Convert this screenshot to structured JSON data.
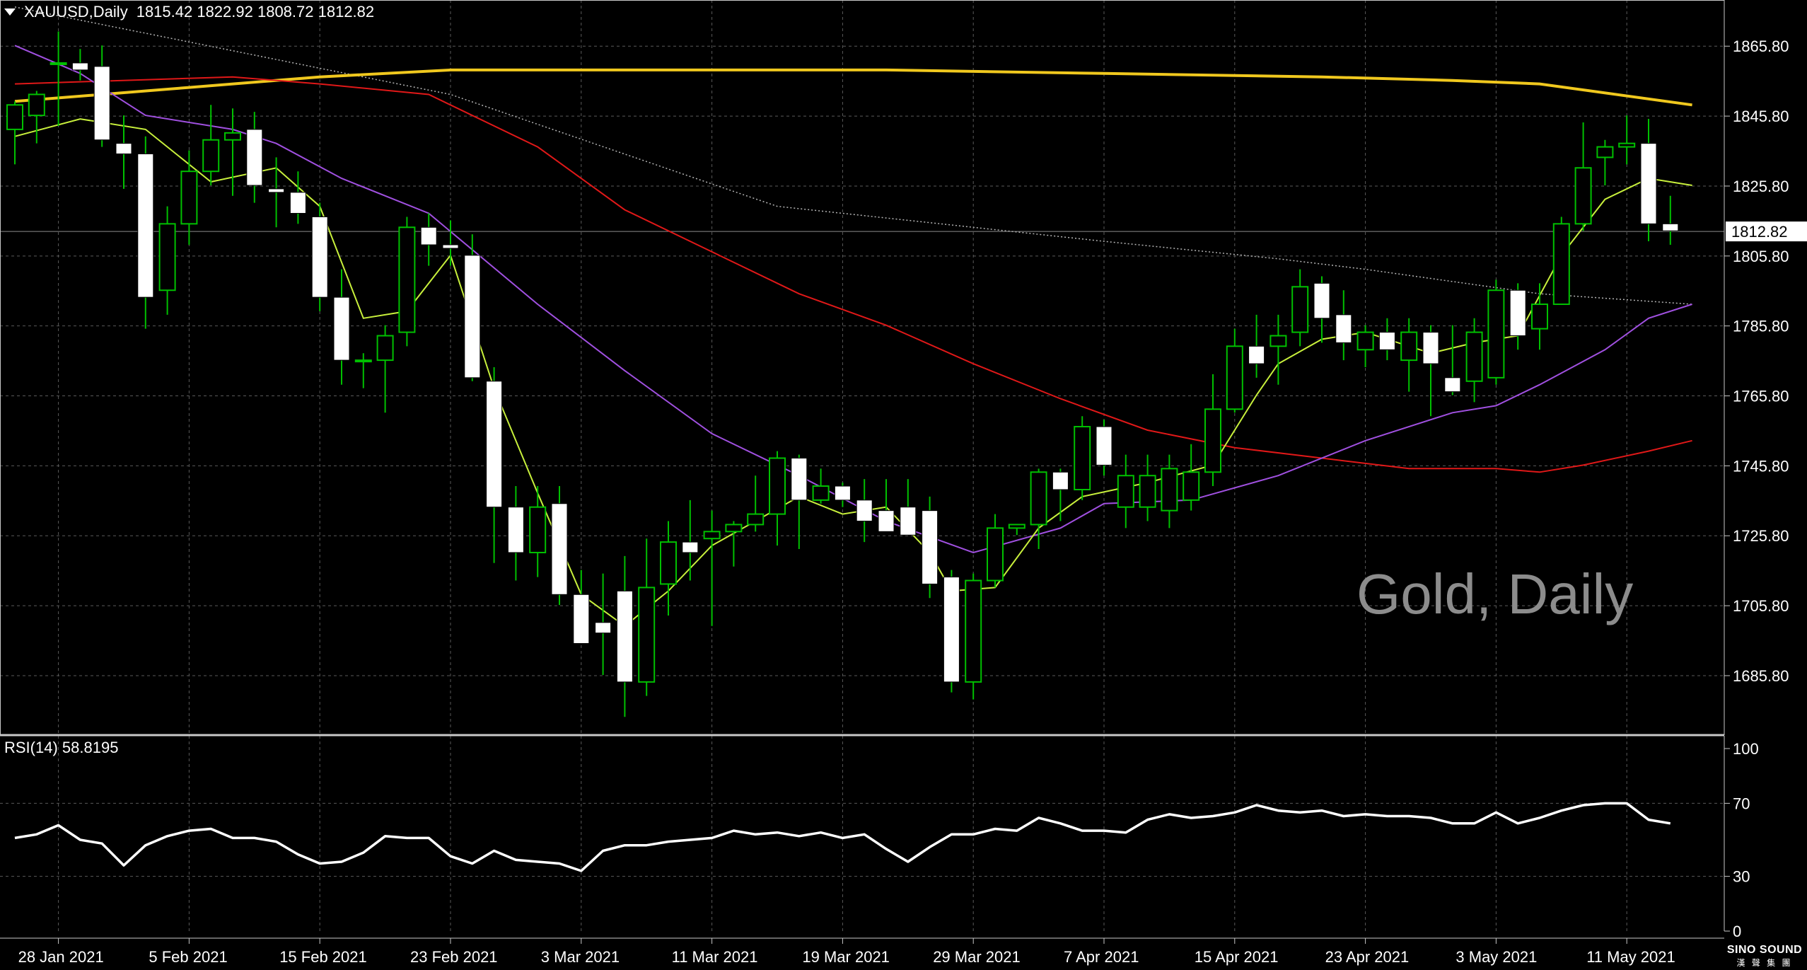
{
  "header": {
    "symbol": "XAUUSD,Daily",
    "ohlc": "1815.42 1822.92 1808.72 1812.82"
  },
  "rsi_header": "RSI(14) 58.8195",
  "watermark": "Gold, Daily",
  "logo": {
    "line1": "SINO SOUND",
    "line2": "漢 聲 集 團"
  },
  "colors": {
    "background": "#000000",
    "grid": "#5a5a5a",
    "bull_candle": "#000000",
    "bear_candle": "#ffffff",
    "wick": "#00c000",
    "ma_fast": "#c8f03c",
    "ma_mid": "#a050e0",
    "ma_slow": "#e01818",
    "ma_long": "#f0c81e",
    "ma_dotted": "#b4b4b4",
    "rsi_line": "#ffffff",
    "price_tag_bg": "#ffffff",
    "price_tag_text": "#000000"
  },
  "chart_data": [
    {
      "type": "candlestick",
      "ylim": [
        1669,
        1879
      ],
      "yticks": [
        1865.8,
        1845.8,
        1825.8,
        1805.8,
        1785.8,
        1765.8,
        1745.8,
        1725.8,
        1705.8,
        1685.8
      ],
      "last_price": 1812.82,
      "last_price_label": "1812.82",
      "xticks": [
        {
          "i": 2,
          "label": "28 Jan 2021"
        },
        {
          "i": 8,
          "label": "5 Feb 2021"
        },
        {
          "i": 14,
          "label": "15 Feb 2021"
        },
        {
          "i": 20,
          "label": "23 Feb 2021"
        },
        {
          "i": 26,
          "label": "3 Mar 2021"
        },
        {
          "i": 32,
          "label": "11 Mar 2021"
        },
        {
          "i": 38,
          "label": "19 Mar 2021"
        },
        {
          "i": 44,
          "label": "29 Mar 2021"
        },
        {
          "i": 50,
          "label": "7 Apr 2021"
        },
        {
          "i": 56,
          "label": "15 Apr 2021"
        },
        {
          "i": 62,
          "label": "23 Apr 2021"
        },
        {
          "i": 68,
          "label": "3 May 2021"
        },
        {
          "i": 74,
          "label": "11 May 2021"
        }
      ],
      "candles": [
        [
          1842,
          1850,
          1832,
          1849
        ],
        [
          1846,
          1853,
          1838,
          1852
        ],
        [
          1861,
          1870,
          1843,
          1861
        ],
        [
          1861,
          1865,
          1856,
          1859
        ],
        [
          1860,
          1866,
          1837,
          1839
        ],
        [
          1838,
          1846,
          1825,
          1835
        ],
        [
          1835,
          1840,
          1785,
          1794
        ],
        [
          1796,
          1820,
          1789,
          1815
        ],
        [
          1815,
          1836,
          1809,
          1830
        ],
        [
          1830,
          1849,
          1826,
          1839
        ],
        [
          1839,
          1848,
          1823,
          1841
        ],
        [
          1842,
          1847,
          1821,
          1826
        ],
        [
          1825,
          1834,
          1814,
          1824
        ],
        [
          1824,
          1830,
          1815,
          1818
        ],
        [
          1817,
          1821,
          1790,
          1794
        ],
        [
          1794,
          1802,
          1769,
          1776
        ],
        [
          1776,
          1778,
          1768,
          1776
        ],
        [
          1776,
          1786,
          1761,
          1783
        ],
        [
          1784,
          1817,
          1780,
          1814
        ],
        [
          1814,
          1818,
          1803,
          1809
        ],
        [
          1809,
          1816,
          1803,
          1808
        ],
        [
          1806,
          1812,
          1770,
          1771
        ],
        [
          1770,
          1774,
          1718,
          1734
        ],
        [
          1734,
          1740,
          1713,
          1721
        ],
        [
          1721,
          1740,
          1714,
          1734
        ],
        [
          1735,
          1740,
          1706,
          1709
        ],
        [
          1709,
          1716,
          1695,
          1695
        ],
        [
          1701,
          1715,
          1686,
          1698
        ],
        [
          1710,
          1720,
          1674,
          1684
        ],
        [
          1684,
          1725,
          1680,
          1711
        ],
        [
          1712,
          1730,
          1703,
          1724
        ],
        [
          1724,
          1736,
          1713,
          1721
        ],
        [
          1725,
          1733,
          1700,
          1727
        ],
        [
          1727,
          1730,
          1717,
          1729
        ],
        [
          1729,
          1743,
          1727,
          1732
        ],
        [
          1732,
          1750,
          1723,
          1748
        ],
        [
          1748,
          1749,
          1722,
          1736
        ],
        [
          1736,
          1745,
          1735,
          1740
        ],
        [
          1740,
          1741,
          1734,
          1736
        ],
        [
          1736,
          1742,
          1724,
          1730
        ],
        [
          1733,
          1742,
          1727,
          1727
        ],
        [
          1734,
          1742,
          1726,
          1726
        ],
        [
          1733,
          1737,
          1708,
          1712
        ],
        [
          1714,
          1716,
          1681,
          1684
        ],
        [
          1684,
          1715,
          1679,
          1713
        ],
        [
          1713,
          1732,
          1711,
          1728
        ],
        [
          1728,
          1728,
          1726,
          1729
        ],
        [
          1729,
          1745,
          1722,
          1744
        ],
        [
          1744,
          1745,
          1730,
          1739
        ],
        [
          1739,
          1760,
          1736,
          1757
        ],
        [
          1757,
          1759,
          1743,
          1746
        ],
        [
          1734,
          1749,
          1728,
          1743
        ],
        [
          1734,
          1749,
          1730,
          1743
        ],
        [
          1733,
          1749,
          1728,
          1745
        ],
        [
          1736,
          1752,
          1733,
          1744
        ],
        [
          1744,
          1772,
          1740,
          1762
        ],
        [
          1762,
          1785,
          1761,
          1780
        ],
        [
          1780,
          1789,
          1771,
          1775
        ],
        [
          1780,
          1789,
          1769,
          1783
        ],
        [
          1784,
          1802,
          1780,
          1797
        ],
        [
          1798,
          1800,
          1781,
          1788
        ],
        [
          1789,
          1796,
          1776,
          1781
        ],
        [
          1779,
          1786,
          1774,
          1784
        ],
        [
          1784,
          1788,
          1776,
          1779
        ],
        [
          1776,
          1788,
          1767,
          1784
        ],
        [
          1784,
          1786,
          1760,
          1775
        ],
        [
          1771,
          1786,
          1766,
          1767
        ],
        [
          1770,
          1788,
          1764,
          1784
        ],
        [
          1771,
          1799,
          1769,
          1796
        ],
        [
          1796,
          1798,
          1779,
          1783
        ],
        [
          1785,
          1798,
          1779,
          1792
        ],
        [
          1792,
          1817,
          1792,
          1815
        ],
        [
          1815,
          1844,
          1813,
          1831
        ],
        [
          1834,
          1839,
          1826,
          1837
        ],
        [
          1837,
          1846,
          1832,
          1838
        ],
        [
          1838,
          1845,
          1810,
          1815
        ],
        [
          1815,
          1823,
          1809,
          1813
        ]
      ],
      "moving_averages": [
        {
          "key": "ma_dotted",
          "style": "dotted",
          "points": [
            [
              0,
              1877
            ],
            [
              20,
              1852
            ],
            [
              35,
              1820
            ],
            [
              50,
              1810
            ],
            [
              58,
              1805
            ],
            [
              62,
              1802
            ],
            [
              70,
              1795
            ],
            [
              77,
              1792
            ]
          ]
        },
        {
          "key": "ma_long",
          "style": "thick",
          "points": [
            [
              0,
              1850
            ],
            [
              8,
              1854
            ],
            [
              14,
              1857
            ],
            [
              20,
              1859
            ],
            [
              30,
              1859
            ],
            [
              40,
              1859
            ],
            [
              50,
              1858
            ],
            [
              60,
              1857
            ],
            [
              66,
              1856
            ],
            [
              70,
              1855
            ],
            [
              77,
              1849
            ]
          ]
        },
        {
          "key": "ma_slow",
          "style": "solid",
          "points": [
            [
              0,
              1855
            ],
            [
              10,
              1857
            ],
            [
              14,
              1855
            ],
            [
              19,
              1852
            ],
            [
              24,
              1837
            ],
            [
              28,
              1819
            ],
            [
              32,
              1807
            ],
            [
              36,
              1795
            ],
            [
              40,
              1786
            ],
            [
              44,
              1775
            ],
            [
              48,
              1765
            ],
            [
              52,
              1756
            ],
            [
              56,
              1751
            ],
            [
              60,
              1748
            ],
            [
              64,
              1745
            ],
            [
              68,
              1745
            ],
            [
              70,
              1744
            ],
            [
              72,
              1746
            ],
            [
              75,
              1750
            ],
            [
              77,
              1753
            ]
          ]
        },
        {
          "key": "ma_mid",
          "style": "solid",
          "points": [
            [
              0,
              1866
            ],
            [
              3,
              1858
            ],
            [
              6,
              1846
            ],
            [
              10,
              1842
            ],
            [
              12,
              1838
            ],
            [
              15,
              1828
            ],
            [
              19,
              1818
            ],
            [
              24,
              1792
            ],
            [
              28,
              1773
            ],
            [
              32,
              1755
            ],
            [
              36,
              1743
            ],
            [
              40,
              1730
            ],
            [
              44,
              1721
            ],
            [
              48,
              1728
            ],
            [
              50,
              1735
            ],
            [
              54,
              1736
            ],
            [
              58,
              1743
            ],
            [
              62,
              1753
            ],
            [
              66,
              1761
            ],
            [
              68,
              1763
            ],
            [
              70,
              1769
            ],
            [
              73,
              1779
            ],
            [
              75,
              1788
            ],
            [
              77,
              1792
            ]
          ]
        },
        {
          "key": "ma_fast",
          "style": "solid",
          "points": [
            [
              0,
              1840
            ],
            [
              3,
              1845
            ],
            [
              6,
              1842
            ],
            [
              9,
              1827
            ],
            [
              12,
              1831
            ],
            [
              14,
              1820
            ],
            [
              16,
              1788
            ],
            [
              18,
              1790
            ],
            [
              20,
              1806
            ],
            [
              22,
              1768
            ],
            [
              24,
              1738
            ],
            [
              26,
              1709
            ],
            [
              28,
              1700
            ],
            [
              30,
              1710
            ],
            [
              32,
              1723
            ],
            [
              34,
              1730
            ],
            [
              36,
              1737
            ],
            [
              38,
              1732
            ],
            [
              40,
              1734
            ],
            [
              42,
              1721
            ],
            [
              43,
              1710
            ],
            [
              45,
              1711
            ],
            [
              47,
              1728
            ],
            [
              49,
              1737
            ],
            [
              52,
              1741
            ],
            [
              55,
              1746
            ],
            [
              57,
              1766
            ],
            [
              58,
              1775
            ],
            [
              60,
              1782
            ],
            [
              62,
              1784
            ],
            [
              65,
              1778
            ],
            [
              67,
              1781
            ],
            [
              69,
              1783
            ],
            [
              71,
              1806
            ],
            [
              73,
              1822
            ],
            [
              75,
              1828
            ],
            [
              77,
              1826
            ]
          ]
        }
      ]
    },
    {
      "type": "line",
      "title": "RSI(14) 58.8195",
      "ylim": [
        0,
        100
      ],
      "yticks": [
        100,
        70,
        30,
        0
      ],
      "values": [
        51,
        53,
        58,
        50,
        48,
        36,
        47,
        52,
        55,
        56,
        51,
        51,
        49,
        42,
        37,
        38,
        43,
        52,
        51,
        51,
        41,
        37,
        44,
        39,
        38,
        37,
        33,
        44,
        47,
        47,
        49,
        50,
        51,
        55,
        53,
        54,
        52,
        54,
        51,
        53,
        45,
        38,
        46,
        53,
        53,
        56,
        55,
        62,
        59,
        55,
        55,
        54,
        61,
        64,
        62,
        63,
        65,
        69,
        66,
        65,
        66,
        63,
        64,
        63,
        63,
        62,
        59,
        59,
        65,
        59,
        62,
        66,
        69,
        70,
        70,
        61,
        59
      ]
    }
  ]
}
